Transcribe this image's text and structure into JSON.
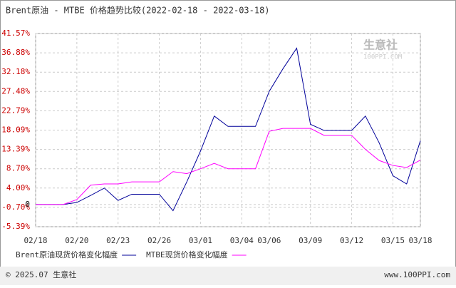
{
  "chart_data": {
    "type": "line",
    "title": "Brent原油 - MTBE 价格趋势比较(2022-02-18 - 2022-03-18)",
    "categories": [
      "02/18",
      null,
      null,
      "02/20",
      null,
      null,
      "02/23",
      null,
      null,
      "02/26",
      null,
      null,
      "03/01",
      null,
      null,
      "03/04",
      null,
      "03/06",
      null,
      null,
      "03/09",
      null,
      null,
      "03/12",
      null,
      null,
      "03/15",
      null,
      "03/18"
    ],
    "series": [
      {
        "name": "Brent原油现货价格变化幅度",
        "color": "#000099",
        "values": [
          0,
          0,
          0,
          0.5,
          2.2,
          4,
          1,
          2.5,
          2.5,
          2.5,
          -1.5,
          5.5,
          13,
          21.5,
          19,
          19,
          19,
          27.5,
          33,
          38,
          19.5,
          18,
          18,
          18,
          21.5,
          15,
          7,
          5,
          15.5
        ]
      },
      {
        "name": "MTBE现货价格变化幅度",
        "color": "#ff00ff",
        "values": [
          0,
          0,
          0,
          1.2,
          4.7,
          5,
          5,
          5.5,
          5.5,
          5.5,
          8,
          7.5,
          8.7,
          10,
          8.7,
          8.7,
          8.7,
          17.8,
          18.5,
          18.5,
          18.5,
          16.8,
          16.8,
          16.8,
          13.4,
          10.7,
          9.5,
          9,
          10.8
        ]
      }
    ],
    "ylim": [
      -5.39,
      41.57
    ],
    "yticks": [
      {
        "value": -5.39,
        "label": "-5.39%"
      },
      {
        "value": -0.7,
        "label": "-0.70%"
      },
      0,
      {
        "value": 4.0,
        "label": "4.00%"
      },
      {
        "value": 8.7,
        "label": "8.70%"
      },
      {
        "value": 13.39,
        "label": "13.39%"
      },
      {
        "value": 18.09,
        "label": "18.09%"
      },
      {
        "value": 22.79,
        "label": "22.79%"
      },
      {
        "value": 27.48,
        "label": "27.48%"
      },
      {
        "value": 32.18,
        "label": "32.18%"
      },
      {
        "value": 36.88,
        "label": "36.88%"
      },
      {
        "value": 41.57,
        "label": "41.57%"
      }
    ],
    "grid": true,
    "watermark": [
      "生意社",
      "100PPI.COM"
    ],
    "footer": {
      "left": "© 2025.07 生意社",
      "right": "www.100PPI.com"
    }
  }
}
